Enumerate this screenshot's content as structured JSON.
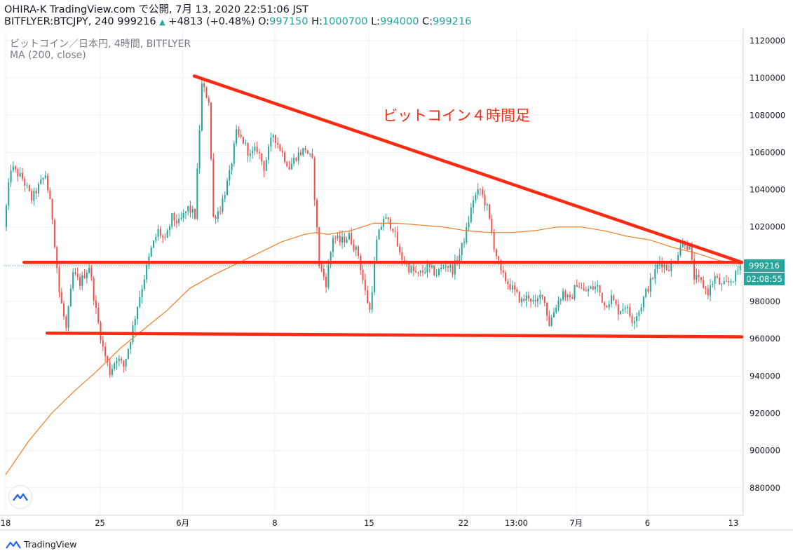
{
  "header": {
    "line1": "OHIRA-K TradingView.com で公開, 7月 13, 2020 22:51:06 JST",
    "line2_symbol": "BITFLYER:BTCJPY, 240 999216",
    "line2_change": "+4813 (+0.48%)",
    "o_label": "O:",
    "o_value": "997150",
    "h_label": "H:",
    "h_value": "1000700",
    "l_label": "L:",
    "l_value": "994000",
    "c_label": "C:",
    "c_value": "999216"
  },
  "legend": {
    "series_title": "ビットコイン／日本円, 4時間, BITFLYER",
    "indicator": "MA (200, close)"
  },
  "annotation": "ビットコイン４時間足",
  "footer": {
    "brand": "TradingView"
  },
  "colors": {
    "up": "#26a69a",
    "down": "#ef5350",
    "ma": "#f57c25",
    "trendline": "#ff2a12",
    "grid": "#eef0f3",
    "axis_text": "#131722",
    "price_badge": "#26a69a"
  },
  "chart_data": {
    "type": "candlestick",
    "y_axis": {
      "ylim": [
        866000,
        1126000
      ],
      "ticks": [
        880000,
        900000,
        920000,
        940000,
        960000,
        980000,
        1000000,
        1020000,
        1040000,
        1060000,
        1080000,
        1100000,
        1120000
      ],
      "tick_labels": [
        "880000",
        "900000",
        "920000",
        "940000",
        "960000",
        "980000",
        "1000000",
        "1020000",
        "1040000",
        "1060000",
        "1080000",
        "1100000",
        "1120000"
      ]
    },
    "x_axis": {
      "bar_count": 320,
      "tick_labels": [
        {
          "bar": 0,
          "label": "18"
        },
        {
          "bar": 41,
          "label": "25"
        },
        {
          "bar": 77,
          "label": "6月"
        },
        {
          "bar": 117,
          "label": "8"
        },
        {
          "bar": 158,
          "label": "15"
        },
        {
          "bar": 199,
          "label": "22"
        },
        {
          "bar": 222,
          "label": "13:00"
        },
        {
          "bar": 248,
          "label": "7月"
        },
        {
          "bar": 279,
          "label": "6"
        },
        {
          "bar": 320,
          "label": "13"
        }
      ]
    },
    "price_path": [
      [
        0,
        1020000
      ],
      [
        3,
        1052000
      ],
      [
        8,
        1046000
      ],
      [
        12,
        1035000
      ],
      [
        18,
        1048000
      ],
      [
        21,
        1025000
      ],
      [
        24,
        985000
      ],
      [
        27,
        965000
      ],
      [
        30,
        995000
      ],
      [
        33,
        990000
      ],
      [
        37,
        999000
      ],
      [
        40,
        975000
      ],
      [
        43,
        955000
      ],
      [
        46,
        942000
      ],
      [
        49,
        950000
      ],
      [
        52,
        945000
      ],
      [
        55,
        960000
      ],
      [
        58,
        978000
      ],
      [
        61,
        993000
      ],
      [
        64,
        1008000
      ],
      [
        67,
        1018000
      ],
      [
        70,
        1012000
      ],
      [
        73,
        1025000
      ],
      [
        76,
        1022000
      ],
      [
        80,
        1030000
      ],
      [
        83,
        1026000
      ],
      [
        86,
        1096000
      ],
      [
        89,
        1088000
      ],
      [
        91,
        1025000
      ],
      [
        94,
        1030000
      ],
      [
        98,
        1048000
      ],
      [
        101,
        1070000
      ],
      [
        104,
        1066000
      ],
      [
        107,
        1058000
      ],
      [
        110,
        1062000
      ],
      [
        113,
        1052000
      ],
      [
        117,
        1070000
      ],
      [
        120,
        1062000
      ],
      [
        124,
        1052000
      ],
      [
        127,
        1058000
      ],
      [
        131,
        1062000
      ],
      [
        134,
        1055000
      ],
      [
        137,
        1000000
      ],
      [
        140,
        990000
      ],
      [
        143,
        1015000
      ],
      [
        146,
        1012000
      ],
      [
        150,
        1015000
      ],
      [
        154,
        1005000
      ],
      [
        157,
        985000
      ],
      [
        159,
        975000
      ],
      [
        162,
        1012000
      ],
      [
        165,
        1025000
      ],
      [
        169,
        1020000
      ],
      [
        172,
        1005000
      ],
      [
        176,
        998000
      ],
      [
        180,
        994000
      ],
      [
        184,
        998000
      ],
      [
        188,
        995000
      ],
      [
        192,
        1000000
      ],
      [
        195,
        997000
      ],
      [
        198,
        1005000
      ],
      [
        201,
        1018000
      ],
      [
        204,
        1035000
      ],
      [
        207,
        1040000
      ],
      [
        210,
        1030000
      ],
      [
        213,
        1010000
      ],
      [
        216,
        995000
      ],
      [
        219,
        990000
      ],
      [
        222,
        985000
      ],
      [
        225,
        980000
      ],
      [
        228,
        983000
      ],
      [
        231,
        978000
      ],
      [
        234,
        985000
      ],
      [
        237,
        968000
      ],
      [
        240,
        978000
      ],
      [
        243,
        985000
      ],
      [
        246,
        980000
      ],
      [
        249,
        990000
      ],
      [
        252,
        985000
      ],
      [
        255,
        987000
      ],
      [
        258,
        988000
      ],
      [
        261,
        978000
      ],
      [
        264,
        982000
      ],
      [
        267,
        975000
      ],
      [
        270,
        978000
      ],
      [
        273,
        970000
      ],
      [
        276,
        975000
      ],
      [
        279,
        985000
      ],
      [
        282,
        993000
      ],
      [
        285,
        1002000
      ],
      [
        288,
        998000
      ],
      [
        291,
        1000000
      ],
      [
        294,
        1010000
      ],
      [
        296,
        1012000
      ],
      [
        298,
        1008000
      ],
      [
        300,
        993000
      ],
      [
        303,
        990000
      ],
      [
        306,
        985000
      ],
      [
        309,
        993000
      ],
      [
        312,
        988000
      ],
      [
        315,
        990000
      ],
      [
        318,
        994000
      ],
      [
        320,
        999216
      ]
    ],
    "ma200": [
      [
        0,
        887000
      ],
      [
        10,
        905000
      ],
      [
        20,
        920000
      ],
      [
        30,
        932000
      ],
      [
        40,
        943000
      ],
      [
        50,
        955000
      ],
      [
        60,
        965000
      ],
      [
        70,
        975000
      ],
      [
        80,
        987000
      ],
      [
        90,
        994000
      ],
      [
        100,
        1000000
      ],
      [
        110,
        1006000
      ],
      [
        120,
        1012000
      ],
      [
        130,
        1016000
      ],
      [
        135,
        1017000
      ],
      [
        140,
        1016000
      ],
      [
        150,
        1018000
      ],
      [
        160,
        1022000
      ],
      [
        170,
        1022000
      ],
      [
        180,
        1021000
      ],
      [
        190,
        1020000
      ],
      [
        200,
        1018000
      ],
      [
        210,
        1017000
      ],
      [
        220,
        1017000
      ],
      [
        230,
        1018000
      ],
      [
        240,
        1020000
      ],
      [
        250,
        1020000
      ],
      [
        260,
        1018000
      ],
      [
        270,
        1015000
      ],
      [
        280,
        1013000
      ],
      [
        290,
        1009000
      ],
      [
        300,
        1006000
      ],
      [
        310,
        1002000
      ],
      [
        320,
        1000000
      ]
    ],
    "trendlines": [
      {
        "from": [
          82,
          1101000
        ],
        "to": [
          320,
          1001000
        ]
      },
      {
        "from": [
          8,
          1001000
        ],
        "to": [
          320,
          1001000
        ]
      },
      {
        "from": [
          18,
          963000
        ],
        "to": [
          320,
          961000
        ]
      }
    ],
    "last_price": {
      "value": "999216",
      "countdown": "02:08:55"
    }
  }
}
